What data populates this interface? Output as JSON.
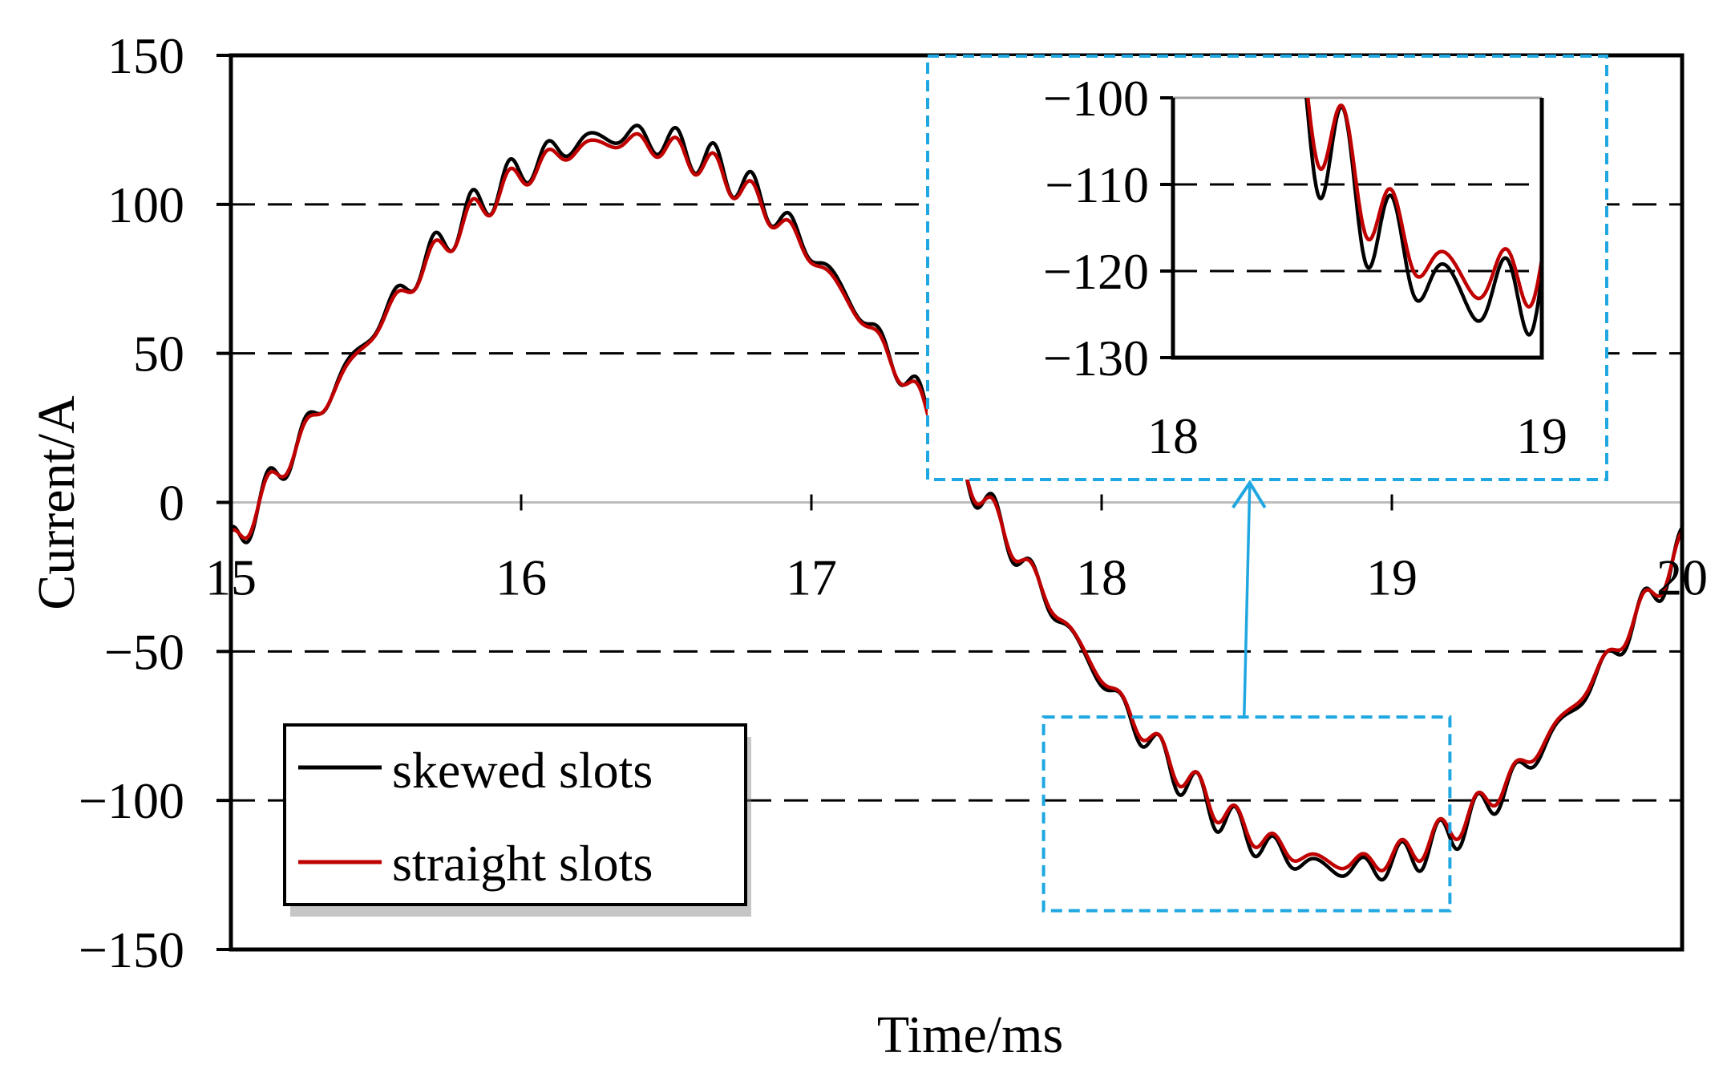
{
  "chart_data": {
    "type": "line",
    "title": "",
    "xlabel": "Time/ms",
    "ylabel": "Current/A",
    "xlim": [
      15,
      20
    ],
    "ylim": [
      -150,
      150
    ],
    "x_ticks": [
      "15",
      "16",
      "17",
      "18",
      "19",
      "20"
    ],
    "y_ticks": [
      "150",
      "100",
      "50",
      "0",
      "−50",
      "−100",
      "−150"
    ],
    "grid": "dashed horizontal at ±50 and ±100",
    "legend_position": "bottom-left",
    "series": [
      {
        "name": "skewed slots",
        "color": "#000000",
        "base_amplitude": 123,
        "period_ms": 5,
        "phase_zero_crossing_ms": 15.1,
        "harmonic_ripple_amplitude": 4.5,
        "peak_range": [
          -128,
          126
        ]
      },
      {
        "name": "straight slots",
        "color": "#c00000",
        "base_amplitude": 121,
        "period_ms": 5,
        "phase_zero_crossing_ms": 15.1,
        "harmonic_ripple_amplitude": 3.5,
        "peak_range": [
          -124,
          124
        ]
      }
    ],
    "inset": {
      "xlim": [
        18,
        19
      ],
      "ylim": [
        -130,
        -100
      ],
      "x_ticks": [
        "18",
        "19"
      ],
      "y_ticks": [
        "−100",
        "−110",
        "−120",
        "−130"
      ],
      "highlight_region": {
        "x": [
          17.8,
          19.2
        ],
        "y": [
          -137,
          -72
        ]
      }
    },
    "highlight_color": "#1ea7e1"
  }
}
